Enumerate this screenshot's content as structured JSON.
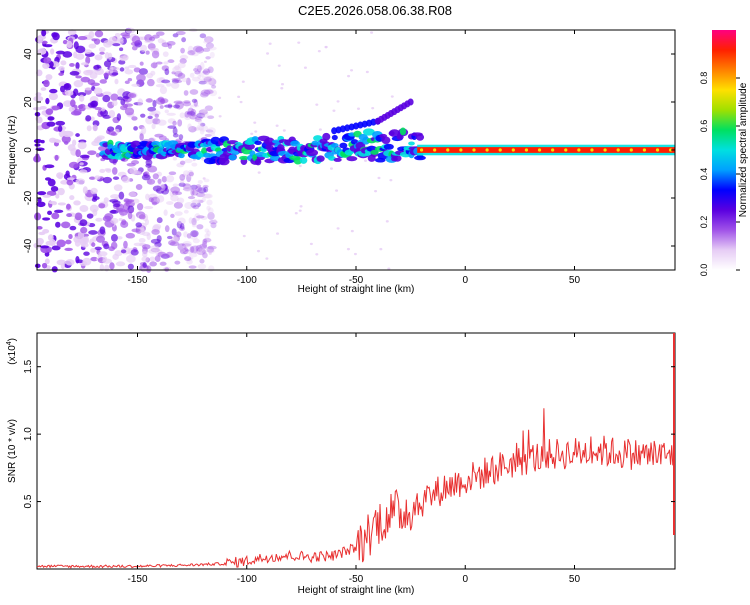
{
  "title": "C2E5.2026.058.06.38.R08",
  "colors": {
    "snr_line": "#e83030",
    "colormap": [
      "#ffffff",
      "#e6ccf5",
      "#a052e8",
      "#5a00e0",
      "#0000ff",
      "#00a0ff",
      "#00e0e0",
      "#00e060",
      "#a0e000",
      "#ffe000",
      "#ff8000",
      "#ff2000",
      "#ff0080"
    ]
  },
  "chart_data": [
    {
      "type": "heatmap",
      "xlabel": "Height of straight line (km)",
      "ylabel": "Frequency (Hz)",
      "xlim": [
        -196,
        96
      ],
      "ylim": [
        -50,
        50
      ],
      "xticks": [
        -150,
        -100,
        -50,
        0,
        50
      ],
      "yticks": [
        -40,
        -20,
        0,
        20,
        40
      ],
      "colorbar": {
        "label": "Normalized spectral amplitude",
        "range": [
          0,
          1
        ],
        "ticks": [
          "0.0",
          "0.2",
          "0.4",
          "0.6",
          "0.8"
        ]
      },
      "description_series": {
        "noise_region_x": [
          -196,
          -125
        ],
        "signal_line_y": 0,
        "signal_start_x": -165,
        "upper_branch": [
          {
            "x": -60,
            "y": 8
          },
          {
            "x": -40,
            "y": 12
          },
          {
            "x": -25,
            "y": 20
          }
        ]
      }
    },
    {
      "type": "line",
      "xlabel": "Height of straight line (km)",
      "ylabel": "SNR (10 * v/v)",
      "y_multiplier": "(x10",
      "y_multiplier_exp": "4",
      "y_multiplier_close": ")",
      "xlim": [
        -196,
        96
      ],
      "ylim": [
        0,
        1.75
      ],
      "xticks": [
        -150,
        -100,
        -50,
        0,
        50
      ],
      "yticks": [
        0.5,
        1.0,
        1.5
      ],
      "ytick_labels": [
        "0.5",
        "1.0",
        "1.5"
      ],
      "series": [
        {
          "x": [
            -196,
            -150,
            -125,
            -110,
            -100,
            -90,
            -80,
            -70,
            -60,
            -50,
            -45,
            -40,
            -35,
            -30,
            -25,
            -20,
            -10,
            0,
            10,
            20,
            30,
            40,
            50,
            60,
            70,
            80,
            90,
            95
          ],
          "y": [
            0.02,
            0.02,
            0.03,
            0.04,
            0.06,
            0.09,
            0.1,
            0.09,
            0.1,
            0.16,
            0.25,
            0.35,
            0.4,
            0.42,
            0.45,
            0.5,
            0.6,
            0.66,
            0.72,
            0.78,
            0.82,
            0.85,
            0.86,
            0.88,
            0.86,
            0.85,
            0.84,
            0.84
          ]
        }
      ]
    }
  ]
}
